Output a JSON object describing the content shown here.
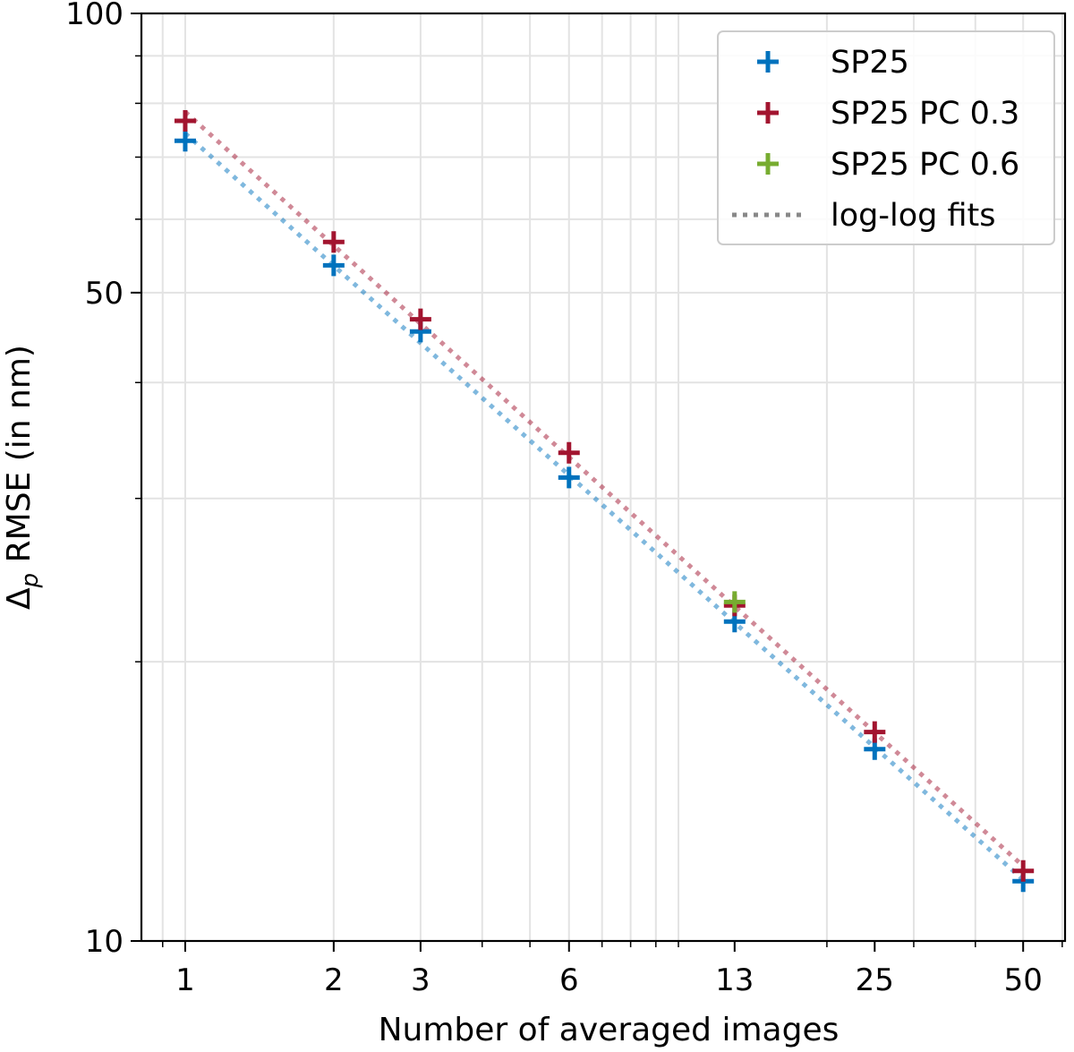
{
  "chart_data": {
    "type": "scatter",
    "title": "",
    "xlabel": "Number of averaged images",
    "ylabel_main": "Δ",
    "ylabel_sub": "p",
    "ylabel_rest": " RMSE (in nm)",
    "xscale": "log",
    "yscale": "log",
    "xlim": [
      0.815,
      60.8
    ],
    "ylim": [
      10,
      100
    ],
    "x_ticks": [
      1,
      2,
      3,
      6,
      13,
      25,
      50
    ],
    "x_tick_labels": [
      "1",
      "2",
      "3",
      "6",
      "13",
      "25",
      "50"
    ],
    "y_ticks": [
      10,
      50,
      100
    ],
    "y_tick_labels": [
      "10",
      "50",
      "100"
    ],
    "grid": true,
    "legend_position": "top-right",
    "series": [
      {
        "name": "SP25",
        "color": "#0072BD",
        "marker": "plus",
        "x": [
          1,
          2,
          3,
          6,
          13,
          25,
          50
        ],
        "y": [
          72.9,
          53.5,
          45.4,
          31.6,
          22.1,
          16.1,
          11.6
        ]
      },
      {
        "name": "SP25 PC 0.3",
        "color": "#A2142F",
        "marker": "plus",
        "x": [
          1,
          2,
          3,
          6,
          13,
          25,
          50
        ],
        "y": [
          76.6,
          56.7,
          46.8,
          33.6,
          23.0,
          16.8,
          11.9
        ]
      },
      {
        "name": "SP25 PC 0.6",
        "color": "#77AC30",
        "marker": "plus",
        "x": [
          13
        ],
        "y": [
          23.2
        ]
      }
    ],
    "fit_legend_label": "log-log fits",
    "fit_legend_color": "#888888"
  }
}
